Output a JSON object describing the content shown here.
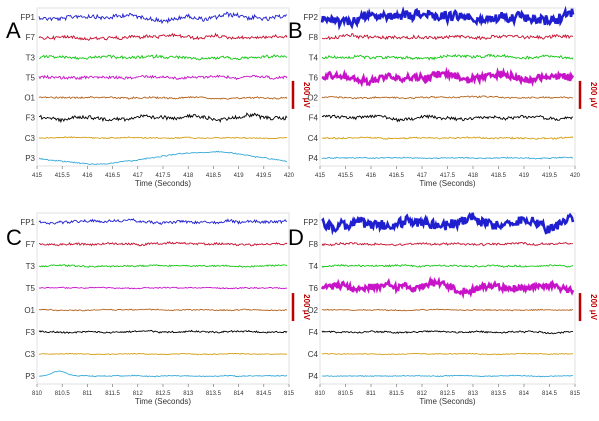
{
  "chart_data": [
    {
      "type": "line",
      "panel_label": "A",
      "channels": [
        "FP1",
        "F7",
        "T3",
        "T5",
        "O1",
        "F3",
        "C3",
        "P3"
      ],
      "channel_colors": [
        "#1f1fd0",
        "#c8102e",
        "#14c814",
        "#c814c8",
        "#b5651d",
        "#000000",
        "#d4a017",
        "#3aaad8"
      ],
      "channel_noise": [
        4,
        3,
        2.5,
        2.5,
        1.5,
        3.5,
        1,
        1
      ],
      "xlim": [
        415,
        420
      ],
      "xticks": [
        "415",
        "415.5",
        "416",
        "416.5",
        "417",
        "417.5",
        "418",
        "418.5",
        "419",
        "419.5",
        "420"
      ],
      "xlabel": "Time (Seconds)",
      "scalebar": "200 μV"
    },
    {
      "type": "line",
      "panel_label": "B",
      "channels": [
        "FP2",
        "F8",
        "T4",
        "T6",
        "O2",
        "F4",
        "C4",
        "P4"
      ],
      "channel_colors": [
        "#1f1fd0",
        "#c8102e",
        "#14c814",
        "#c814c8",
        "#b5651d",
        "#000000",
        "#d4a017",
        "#3aaad8"
      ],
      "channel_noise": [
        9,
        3,
        2.5,
        6,
        1.5,
        3,
        1.5,
        1
      ],
      "xlim": [
        415,
        420
      ],
      "xticks": [
        "415",
        "415.5",
        "416",
        "416.5",
        "417",
        "417.5",
        "418",
        "418.5",
        "419",
        "419.5",
        "420"
      ],
      "xlabel": "Time (Seconds)",
      "scalebar": "200 μV"
    },
    {
      "type": "line",
      "panel_label": "C",
      "channels": [
        "FP1",
        "F7",
        "T3",
        "T5",
        "O1",
        "F3",
        "C3",
        "P3"
      ],
      "channel_colors": [
        "#1f1fd0",
        "#c8102e",
        "#14c814",
        "#c814c8",
        "#b5651d",
        "#000000",
        "#d4a017",
        "#3aaad8"
      ],
      "channel_noise": [
        2.5,
        2,
        1.5,
        1,
        1,
        1.5,
        0.8,
        0.8
      ],
      "xlim": [
        810,
        815
      ],
      "xticks": [
        "810",
        "810.5",
        "811",
        "811.5",
        "812",
        "812.5",
        "813",
        "813.5",
        "814",
        "814.5",
        "815"
      ],
      "xlabel": "Time (Seconds)",
      "scalebar": "200 μV"
    },
    {
      "type": "line",
      "panel_label": "D",
      "channels": [
        "FP2",
        "F8",
        "T4",
        "T6",
        "O2",
        "F4",
        "C4",
        "P4"
      ],
      "channel_colors": [
        "#1f1fd0",
        "#c8102e",
        "#14c814",
        "#c814c8",
        "#b5651d",
        "#000000",
        "#d4a017",
        "#3aaad8"
      ],
      "channel_noise": [
        9,
        2,
        1.5,
        6,
        1,
        1.5,
        0.8,
        0.8
      ],
      "xlim": [
        810,
        815
      ],
      "xticks": [
        "810",
        "810.5",
        "811",
        "811.5",
        "812",
        "812.5",
        "813",
        "813.5",
        "814",
        "814.5",
        "815"
      ],
      "xlabel": "Time (Seconds)",
      "scalebar": "200 μV"
    }
  ]
}
